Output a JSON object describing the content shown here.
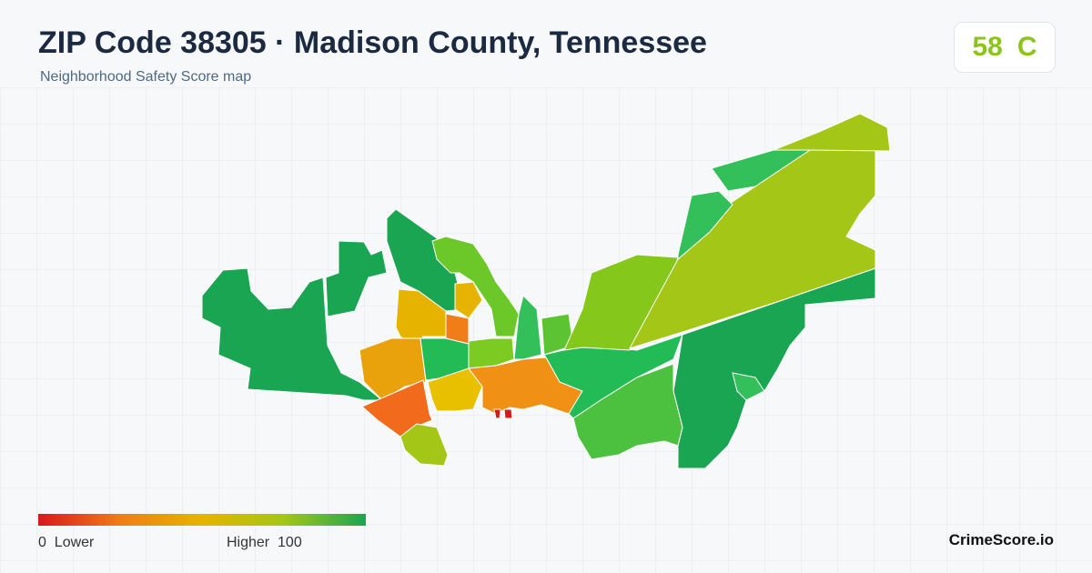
{
  "header": {
    "title": "ZIP Code 38305 · Madison County, Tennessee",
    "subtitle": "Neighborhood Safety Score map"
  },
  "score": {
    "value": 58,
    "grade": "C"
  },
  "legend": {
    "min": 0,
    "min_label": "Lower",
    "max_label": "Higher",
    "max": 100
  },
  "footer": {
    "brand": "CrimeScore.io"
  }
}
